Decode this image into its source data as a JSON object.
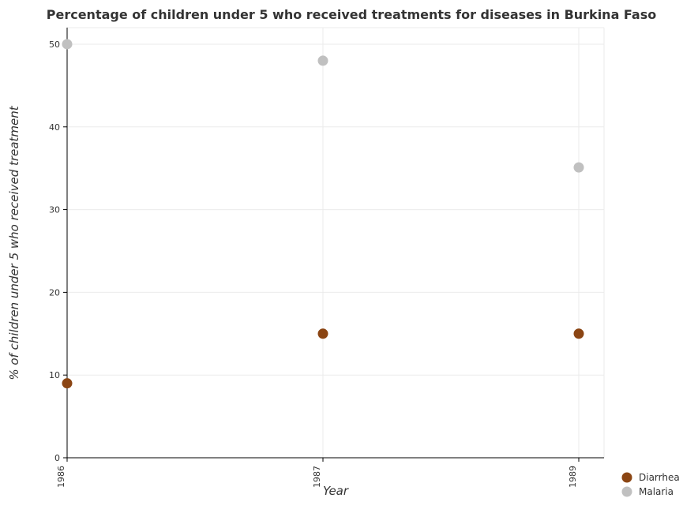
{
  "chart_data": {
    "type": "scatter",
    "title": "Percentage of children under 5 who received treatments for diseases in Burkina Faso",
    "xlabel": "Year",
    "ylabel": "% of children under 5 who received treatment",
    "categories": [
      "1986",
      "1987",
      "1989"
    ],
    "yticks": [
      0,
      10,
      20,
      30,
      40,
      50
    ],
    "ylim": [
      0,
      52
    ],
    "grid": true,
    "legend_position": "bottom-right",
    "series": [
      {
        "name": "Diarrhea",
        "color": "#8b4513",
        "values": [
          9,
          15,
          15
        ]
      },
      {
        "name": "Malaria",
        "color": "#c0c0c0",
        "values": [
          50,
          48,
          35.1
        ]
      }
    ]
  }
}
